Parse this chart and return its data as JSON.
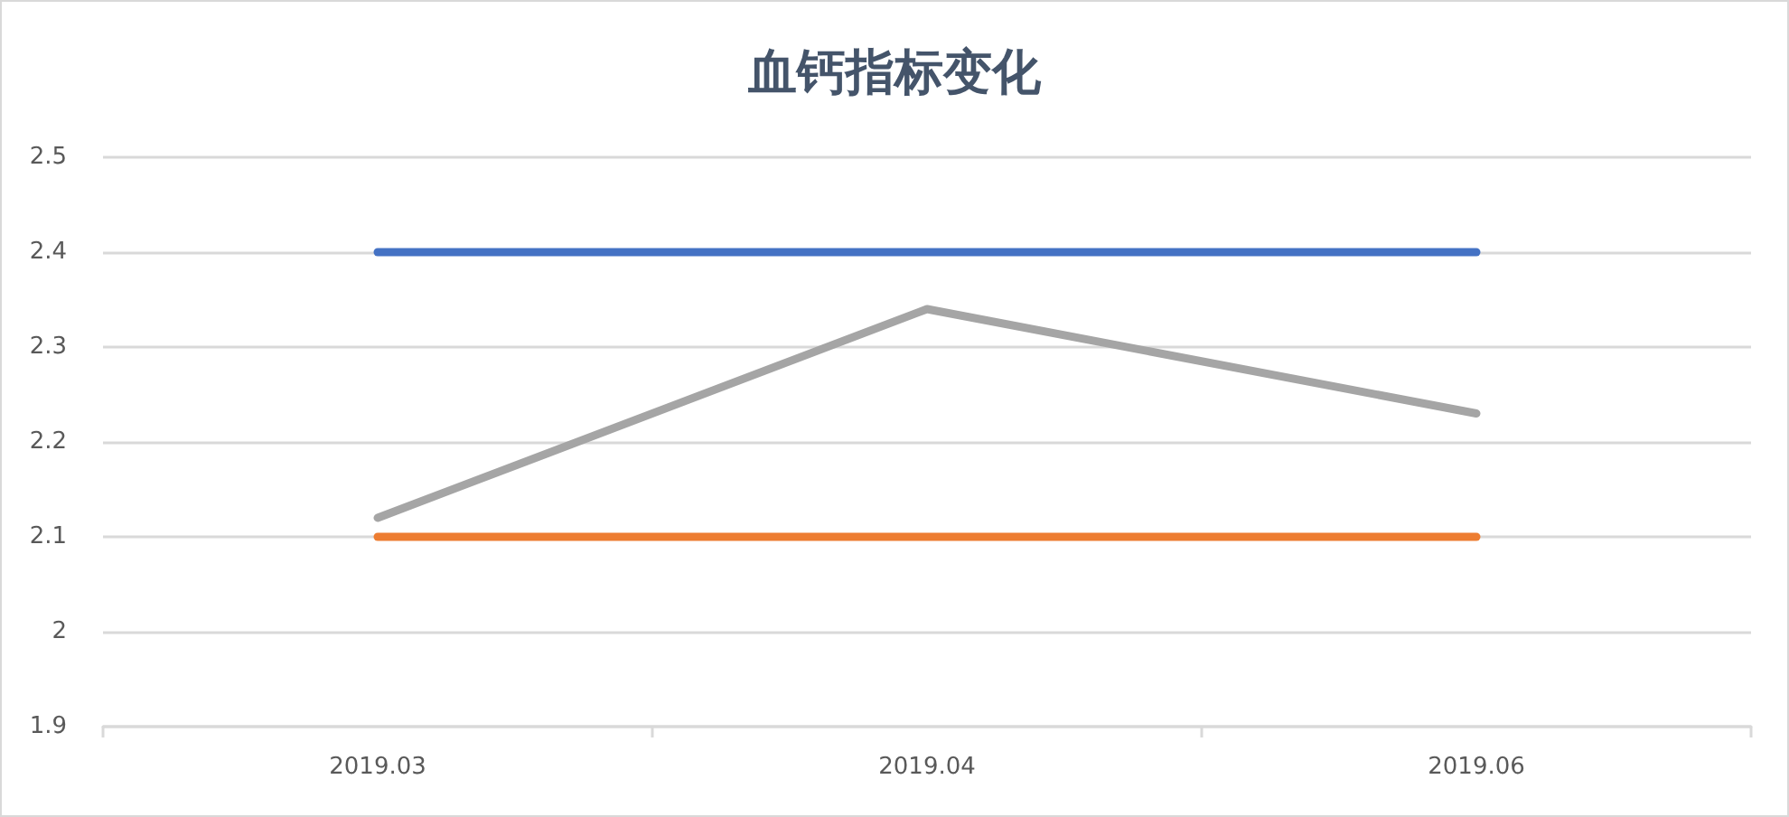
{
  "chart_data": {
    "type": "line",
    "title": "血钙指标变化",
    "categories": [
      "2019.03",
      "2019.04",
      "2019.06"
    ],
    "series": [
      {
        "color": "#4472c4",
        "values": [
          2.4,
          2.4,
          2.4
        ]
      },
      {
        "color": "#ed7d31",
        "values": [
          2.1,
          2.1,
          2.1
        ]
      },
      {
        "color": "#a5a5a5",
        "values": [
          2.12,
          2.34,
          2.23
        ]
      }
    ],
    "ylim": [
      1.9,
      2.5
    ],
    "yticks": [
      1.9,
      2,
      2.1,
      2.2,
      2.3,
      2.4,
      2.5
    ],
    "grid": "y",
    "legend": false,
    "marker": "none",
    "line_style": "solid"
  }
}
